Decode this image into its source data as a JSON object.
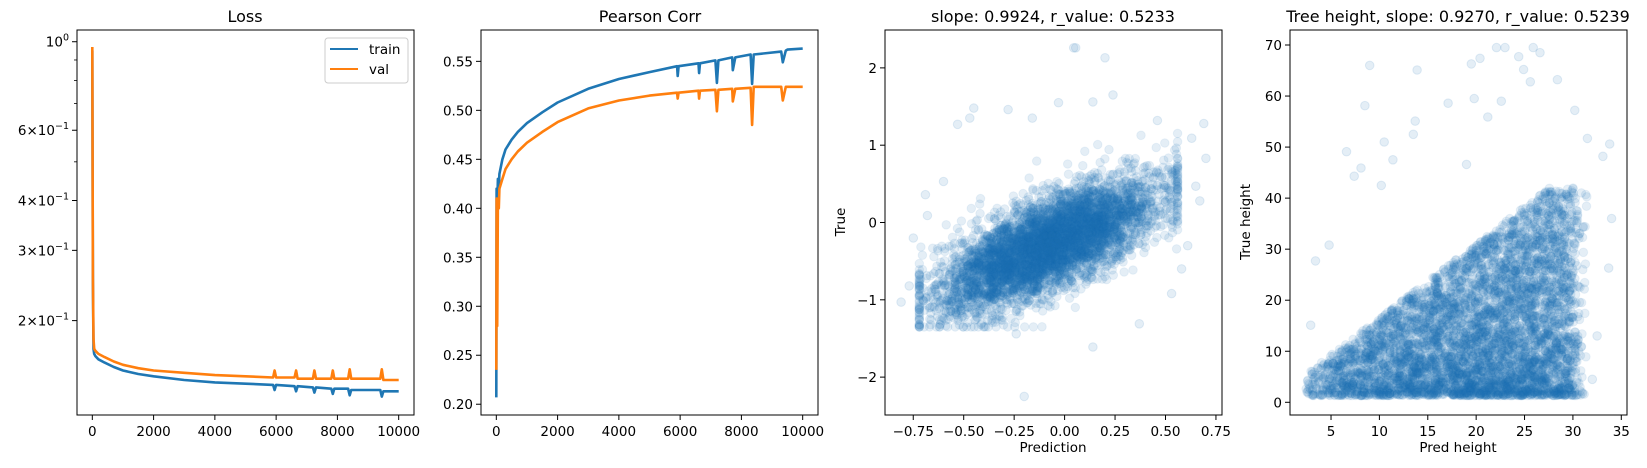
{
  "colors": {
    "train": "#1f77b4",
    "val": "#ff7f0e",
    "scatter": "#1f77b4"
  },
  "chart_data": [
    {
      "type": "line",
      "title": "Loss",
      "xlabel": "",
      "ylabel": "",
      "yscale": "log",
      "xlim": [
        -500,
        10500
      ],
      "ylim": [
        0.116,
        1.07
      ],
      "xticks": [
        0,
        2000,
        4000,
        6000,
        8000,
        10000
      ],
      "yticks": [
        {
          "value": 1.0,
          "mantissa": "",
          "exponent": "0"
        },
        {
          "value": 0.6,
          "mantissa": "6",
          "exponent": "−1"
        },
        {
          "value": 0.4,
          "mantissa": "4",
          "exponent": "−1"
        },
        {
          "value": 0.3,
          "mantissa": "3",
          "exponent": "−1"
        },
        {
          "value": 0.2,
          "mantissa": "2",
          "exponent": "−1"
        }
      ],
      "yminor_ticks": [
        0.5,
        0.7,
        0.8,
        0.9
      ],
      "legend": "top-right",
      "grid": false,
      "series": [
        {
          "name": "train",
          "color": "#1f77b4",
          "x": [
            0,
            20,
            40,
            60,
            100,
            200,
            400,
            700,
            1000,
            1500,
            2000,
            3000,
            4000,
            5000,
            5900,
            5950,
            6000,
            6600,
            6650,
            6700,
            7200,
            7250,
            7300,
            7800,
            7850,
            7900,
            8350,
            8400,
            8450,
            9400,
            9450,
            9500,
            10000
          ],
          "y": [
            0.95,
            0.25,
            0.17,
            0.165,
            0.163,
            0.16,
            0.157,
            0.153,
            0.15,
            0.147,
            0.145,
            0.142,
            0.14,
            0.139,
            0.138,
            0.134,
            0.138,
            0.137,
            0.133,
            0.137,
            0.136,
            0.132,
            0.136,
            0.135,
            0.131,
            0.135,
            0.135,
            0.13,
            0.134,
            0.134,
            0.129,
            0.133,
            0.133
          ]
        },
        {
          "name": "val",
          "color": "#ff7f0e",
          "x": [
            0,
            20,
            40,
            60,
            100,
            200,
            400,
            700,
            1000,
            1500,
            2000,
            3000,
            4000,
            5000,
            5900,
            5950,
            6000,
            6600,
            6650,
            6700,
            7200,
            7250,
            7300,
            7800,
            7850,
            7900,
            8350,
            8400,
            8450,
            9400,
            9450,
            9500,
            10000
          ],
          "y": [
            0.97,
            0.26,
            0.18,
            0.17,
            0.168,
            0.165,
            0.162,
            0.158,
            0.155,
            0.152,
            0.15,
            0.148,
            0.146,
            0.145,
            0.144,
            0.15,
            0.144,
            0.144,
            0.15,
            0.143,
            0.143,
            0.15,
            0.143,
            0.143,
            0.15,
            0.143,
            0.143,
            0.151,
            0.143,
            0.143,
            0.151,
            0.142,
            0.142
          ]
        }
      ]
    },
    {
      "type": "line",
      "title": "Pearson Corr",
      "xlabel": "",
      "ylabel": "",
      "xlim": [
        -500,
        10500
      ],
      "ylim": [
        0.189,
        0.582
      ],
      "xticks": [
        0,
        2000,
        4000,
        6000,
        8000,
        10000
      ],
      "yticks": [
        0.2,
        0.25,
        0.3,
        0.35,
        0.4,
        0.45,
        0.5,
        0.55
      ],
      "grid": false,
      "series": [
        {
          "color": "#1f77b4",
          "x": [
            0,
            10,
            30,
            50,
            80,
            100,
            200,
            300,
            500,
            700,
            1000,
            1500,
            2000,
            3000,
            4000,
            5000,
            5900,
            5920,
            5950,
            6600,
            6620,
            6650,
            7150,
            7200,
            7250,
            7700,
            7720,
            7800,
            8300,
            8350,
            8400,
            9300,
            9350,
            9450,
            9500,
            10000
          ],
          "y": [
            0.207,
            0.42,
            0.4,
            0.43,
            0.42,
            0.435,
            0.45,
            0.46,
            0.47,
            0.478,
            0.487,
            0.498,
            0.508,
            0.522,
            0.532,
            0.539,
            0.545,
            0.535,
            0.545,
            0.548,
            0.538,
            0.548,
            0.551,
            0.528,
            0.551,
            0.554,
            0.541,
            0.554,
            0.557,
            0.527,
            0.557,
            0.56,
            0.549,
            0.561,
            0.562,
            0.563
          ]
        },
        {
          "color": "#ff7f0e",
          "x": [
            0,
            10,
            30,
            50,
            80,
            100,
            200,
            300,
            500,
            700,
            1000,
            1500,
            2000,
            3000,
            4000,
            5000,
            5900,
            5920,
            5950,
            6600,
            6620,
            6650,
            7150,
            7200,
            7250,
            7700,
            7720,
            7800,
            8300,
            8350,
            8400,
            9300,
            9350,
            9450,
            9500,
            10000
          ],
          "y": [
            0.235,
            0.41,
            0.28,
            0.41,
            0.4,
            0.42,
            0.43,
            0.44,
            0.45,
            0.458,
            0.467,
            0.478,
            0.488,
            0.502,
            0.51,
            0.515,
            0.518,
            0.512,
            0.518,
            0.52,
            0.512,
            0.52,
            0.521,
            0.499,
            0.521,
            0.522,
            0.509,
            0.522,
            0.523,
            0.485,
            0.524,
            0.524,
            0.51,
            0.524,
            0.524,
            0.524
          ]
        }
      ]
    },
    {
      "type": "scatter",
      "title": "slope: 0.9924, r_value: 0.5233",
      "xlabel": "Prediction",
      "ylabel": "True",
      "xlim": [
        -0.89,
        0.78
      ],
      "ylim": [
        -2.49,
        2.49
      ],
      "xticks": [
        -0.75,
        -0.5,
        -0.25,
        0.0,
        0.25,
        0.5,
        0.75
      ],
      "xtick_labels": [
        "−0.75",
        "−0.50",
        "−0.25",
        "0.00",
        "0.25",
        "0.50",
        "0.75"
      ],
      "yticks": [
        -2,
        -1,
        0,
        1,
        2
      ],
      "ytick_labels": [
        "−2",
        "−1",
        "0",
        "1",
        "2"
      ],
      "grid": false,
      "alpha": 0.12,
      "points": [
        [
          0.045,
          2.26
        ],
        [
          0.055,
          2.26
        ],
        [
          0.2,
          2.13
        ],
        [
          0.24,
          1.65
        ],
        [
          -0.45,
          1.48
        ],
        [
          -0.28,
          1.46
        ],
        [
          -0.03,
          1.55
        ],
        [
          0.14,
          1.56
        ],
        [
          -0.53,
          1.27
        ],
        [
          0.69,
          1.28
        ],
        [
          0.7,
          0.83
        ],
        [
          0.67,
          0.28
        ],
        [
          -0.69,
          0.36
        ],
        [
          -0.75,
          -0.2
        ],
        [
          -0.81,
          -1.03
        ],
        [
          -0.77,
          -0.82
        ],
        [
          -0.24,
          -1.44
        ],
        [
          0.14,
          -1.61
        ],
        [
          -0.2,
          -2.25
        ],
        [
          0.53,
          -0.92
        ],
        [
          0.37,
          -1.31
        ],
        [
          0.58,
          -0.6
        ],
        [
          0.61,
          -0.3
        ],
        [
          0.65,
          0.47
        ],
        [
          0.63,
          1.09
        ],
        [
          -0.6,
          0.53
        ],
        [
          -0.68,
          0.09
        ],
        [
          -0.47,
          1.35
        ],
        [
          -0.16,
          1.35
        ],
        [
          0.46,
          1.32
        ]
      ]
    },
    {
      "type": "scatter",
      "title": "Tree height, slope: 0.9270, r_value: 0.5239",
      "xlabel": "Pred height",
      "ylabel": "True height",
      "xlim": [
        0.76,
        35.59
      ],
      "ylim": [
        -2.49,
        72.94
      ],
      "xticks": [
        5,
        10,
        15,
        20,
        25,
        30,
        35
      ],
      "xtick_labels": [
        "5",
        "10",
        "15",
        "20",
        "25",
        "30",
        "35"
      ],
      "yticks": [
        0,
        10,
        20,
        30,
        40,
        50,
        60,
        70
      ],
      "ytick_labels": [
        "0",
        "10",
        "20",
        "30",
        "40",
        "50",
        "60",
        "70"
      ],
      "grid": false,
      "alpha": 0.12,
      "points": [
        [
          22.98,
          69.5
        ],
        [
          22.1,
          69.5
        ],
        [
          25.9,
          69.5
        ],
        [
          9.0,
          66.0
        ],
        [
          13.9,
          65.1
        ],
        [
          20.4,
          67.4
        ],
        [
          24.4,
          67.7
        ],
        [
          26.6,
          68.5
        ],
        [
          28.4,
          63.2
        ],
        [
          24.9,
          65.2
        ],
        [
          25.6,
          62.8
        ],
        [
          19.5,
          66.3
        ],
        [
          8.5,
          58.1
        ],
        [
          17.1,
          58.6
        ],
        [
          19.8,
          59.5
        ],
        [
          22.6,
          59.0
        ],
        [
          30.2,
          57.2
        ],
        [
          13.7,
          55.1
        ],
        [
          13.5,
          52.5
        ],
        [
          10.5,
          51.0
        ],
        [
          31.5,
          51.7
        ],
        [
          33.8,
          50.6
        ],
        [
          11.4,
          47.5
        ],
        [
          6.6,
          49.1
        ],
        [
          33.1,
          48.2
        ],
        [
          34.0,
          36.0
        ],
        [
          33.7,
          26.3
        ],
        [
          31.0,
          1.7
        ],
        [
          32.0,
          4.5
        ],
        [
          2.9,
          15.1
        ],
        [
          3.4,
          27.7
        ],
        [
          4.8,
          30.8
        ],
        [
          7.4,
          44.3
        ],
        [
          10.2,
          42.5
        ],
        [
          8.1,
          45.9
        ],
        [
          19.0,
          46.6
        ],
        [
          21.2,
          55.9
        ],
        [
          32.5,
          13.0
        ]
      ]
    }
  ]
}
